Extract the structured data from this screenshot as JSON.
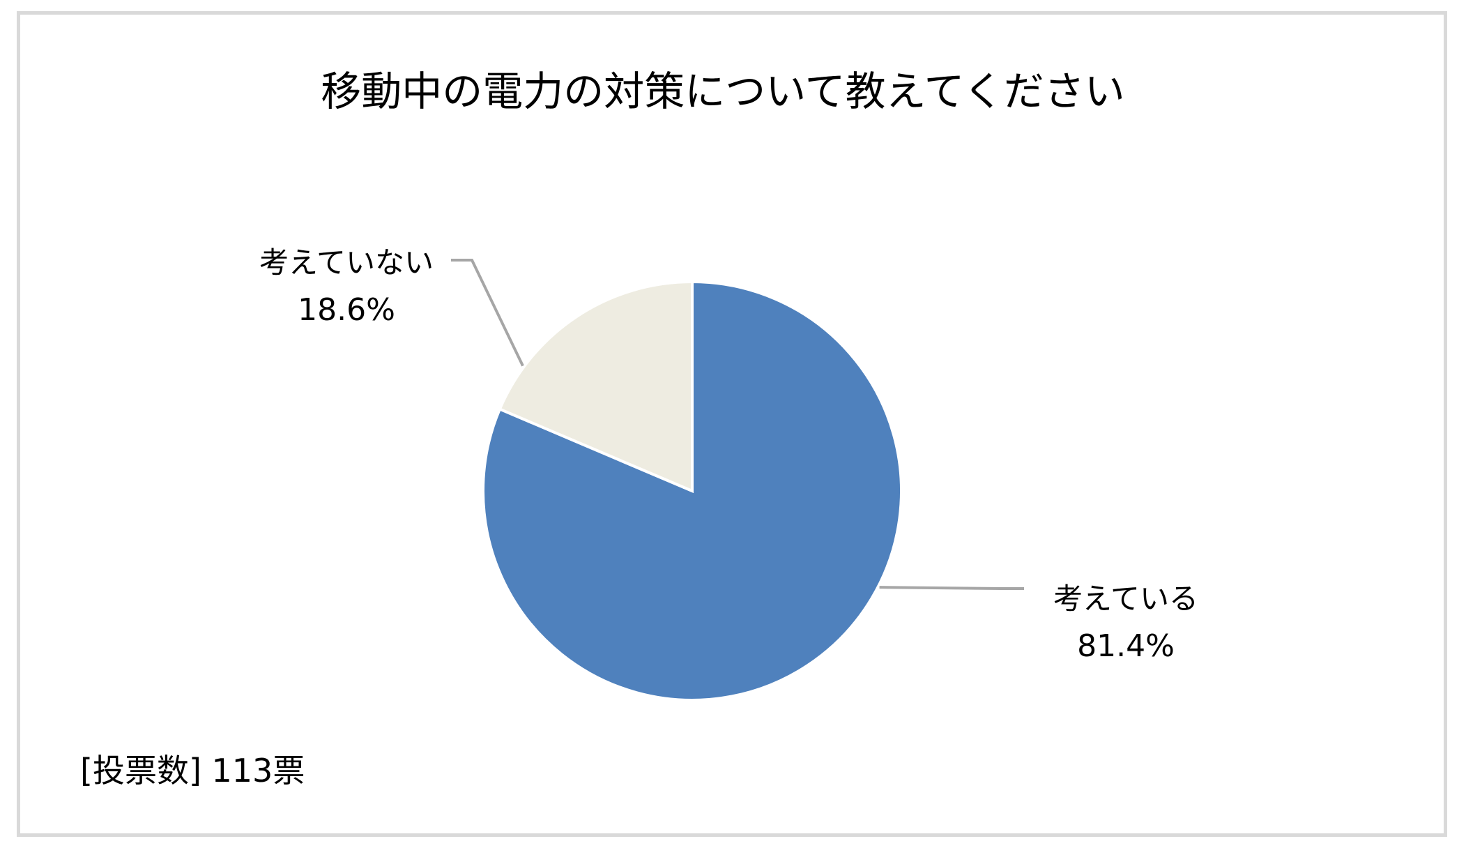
{
  "chart_data": {
    "type": "pie",
    "title": "移動中の電力の対策について教えてください",
    "slices": [
      {
        "label": "考えている",
        "value": 81.4,
        "value_label": "81.4%",
        "color": "#4f81bd"
      },
      {
        "label": "考えていない",
        "value": 18.6,
        "value_label": "18.6%",
        "color": "#eeece1"
      }
    ],
    "start_angle_deg": 0,
    "direction": "clockwise",
    "leader_line_color": "#a6a6a6",
    "footnote": "[投票数] 113票"
  }
}
